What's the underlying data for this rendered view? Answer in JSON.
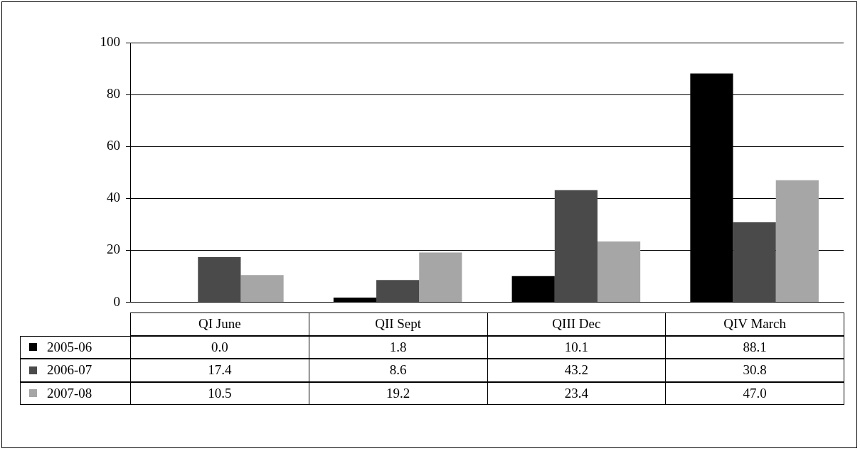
{
  "chart_data": {
    "type": "bar",
    "categories": [
      "QI June",
      "QII Sept",
      "QIII Dec",
      "QIV March"
    ],
    "series": [
      {
        "name": "2005-06",
        "color": "#000000",
        "values": [
          0.0,
          1.8,
          10.1,
          88.1
        ],
        "value_labels": [
          "0.0",
          "1.8",
          "10.1",
          "88.1"
        ]
      },
      {
        "name": "2006-07",
        "color": "#4a4a4a",
        "values": [
          17.4,
          8.6,
          43.2,
          30.8
        ],
        "value_labels": [
          "17.4",
          "8.6",
          "43.2",
          "30.8"
        ]
      },
      {
        "name": "2007-08",
        "color": "#a6a6a6",
        "values": [
          10.5,
          19.2,
          23.4,
          47.0
        ],
        "value_labels": [
          "10.5",
          "19.2",
          "23.4",
          "47.0"
        ]
      }
    ],
    "ylim": [
      0,
      100
    ],
    "yticks": [
      0,
      20,
      40,
      60,
      80,
      100
    ],
    "grid": "y",
    "legend": "bottom"
  }
}
